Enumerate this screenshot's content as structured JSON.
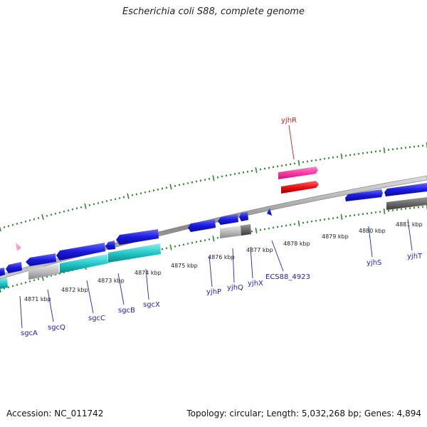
{
  "title": "Escherichia coli S88, complete genome",
  "footer": {
    "accession": "Accession: NC_011742",
    "summary": "Topology: circular; Length: 5,032,268 bp; Genes: 4,894"
  },
  "colors": {
    "backbone": "#9a9a9a",
    "tick": "#2e8b2e",
    "gene_blue": "#1a1ae0",
    "gene_cyan": "#22c8c8",
    "gene_gray": "#b8b8b8",
    "gene_darkgray": "#6a6a6a",
    "gene_pink": "#ff3aa8",
    "gene_red": "#ee1111",
    "label_blue": "#2222bb",
    "label_red": "#cc2222"
  },
  "kbp_labels": [
    "4871 kbp",
    "4872 kbp",
    "4873 kbp",
    "4874 kbp",
    "4875 kbp",
    "4876 kbp",
    "4877 kbp",
    "4878 kbp",
    "4879 kbp",
    "4880 kbp",
    "4881 kbp"
  ],
  "gene_labels": [
    {
      "name": "sgcA",
      "color": "blue"
    },
    {
      "name": "sgcQ",
      "color": "blue"
    },
    {
      "name": "sgcC",
      "color": "blue"
    },
    {
      "name": "sgcB",
      "color": "blue"
    },
    {
      "name": "sgcX",
      "color": "blue"
    },
    {
      "name": "yjhP",
      "color": "blue"
    },
    {
      "name": "yjhQ",
      "color": "blue"
    },
    {
      "name": "yjhX",
      "color": "blue"
    },
    {
      "name": "ECS88_4923",
      "color": "blue"
    },
    {
      "name": "yjhS",
      "color": "blue"
    },
    {
      "name": "yjhT",
      "color": "blue"
    },
    {
      "name": "yjhR",
      "color": "red"
    }
  ]
}
